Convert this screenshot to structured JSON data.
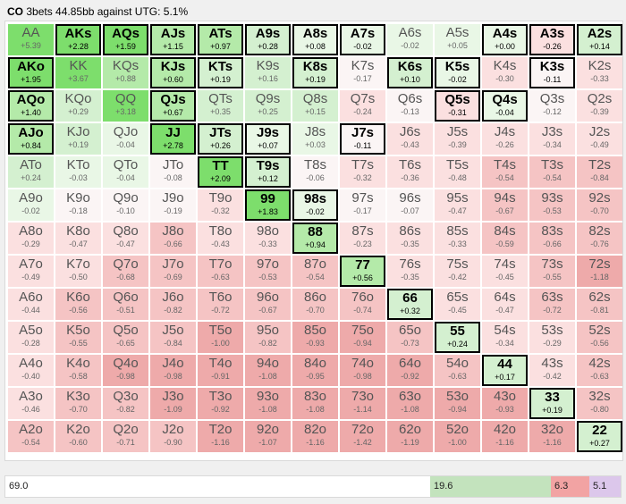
{
  "header": {
    "position": "CO",
    "description": "3bets 44.85bb against UTG: 5.1%"
  },
  "colors": {
    "strong_green": "#7dde6c",
    "light_green": "#d4f0d0",
    "pale_green": "#e9f7e6",
    "neutral": "#fbf5f5",
    "light_red": "#fbe0e0",
    "mid_red": "#f5c4c4",
    "strong_red": "#eeaaaa"
  },
  "grid": {
    "rows": [
      [
        {
          "hand": "AA",
          "ev": "+5.39",
          "sel": false
        },
        {
          "hand": "AKs",
          "ev": "+2.28",
          "sel": true
        },
        {
          "hand": "AQs",
          "ev": "+1.59",
          "sel": true
        },
        {
          "hand": "AJs",
          "ev": "+1.15",
          "sel": true
        },
        {
          "hand": "ATs",
          "ev": "+0.97",
          "sel": true
        },
        {
          "hand": "A9s",
          "ev": "+0.28",
          "sel": true
        },
        {
          "hand": "A8s",
          "ev": "+0.08",
          "sel": true
        },
        {
          "hand": "A7s",
          "ev": "-0.02",
          "sel": true
        },
        {
          "hand": "A6s",
          "ev": "-0.02",
          "sel": false
        },
        {
          "hand": "A5s",
          "ev": "+0.05",
          "sel": false
        },
        {
          "hand": "A4s",
          "ev": "+0.00",
          "sel": true
        },
        {
          "hand": "A3s",
          "ev": "-0.26",
          "sel": true
        },
        {
          "hand": "A2s",
          "ev": "+0.14",
          "sel": true
        }
      ],
      [
        {
          "hand": "AKo",
          "ev": "+1.95",
          "sel": true
        },
        {
          "hand": "KK",
          "ev": "+3.67",
          "sel": false
        },
        {
          "hand": "KQs",
          "ev": "+0.88",
          "sel": false
        },
        {
          "hand": "KJs",
          "ev": "+0.60",
          "sel": true
        },
        {
          "hand": "KTs",
          "ev": "+0.19",
          "sel": true
        },
        {
          "hand": "K9s",
          "ev": "+0.16",
          "sel": false
        },
        {
          "hand": "K8s",
          "ev": "+0.19",
          "sel": true
        },
        {
          "hand": "K7s",
          "ev": "-0.17",
          "sel": false
        },
        {
          "hand": "K6s",
          "ev": "+0.10",
          "sel": true
        },
        {
          "hand": "K5s",
          "ev": "-0.02",
          "sel": true
        },
        {
          "hand": "K4s",
          "ev": "-0.30",
          "sel": false
        },
        {
          "hand": "K3s",
          "ev": "-0.11",
          "sel": true
        },
        {
          "hand": "K2s",
          "ev": "-0.33",
          "sel": false
        }
      ],
      [
        {
          "hand": "AQo",
          "ev": "+1.40",
          "sel": true
        },
        {
          "hand": "KQo",
          "ev": "+0.29",
          "sel": false
        },
        {
          "hand": "QQ",
          "ev": "+3.18",
          "sel": false
        },
        {
          "hand": "QJs",
          "ev": "+0.67",
          "sel": true
        },
        {
          "hand": "QTs",
          "ev": "+0.35",
          "sel": false
        },
        {
          "hand": "Q9s",
          "ev": "+0.25",
          "sel": false
        },
        {
          "hand": "Q8s",
          "ev": "+0.15",
          "sel": false
        },
        {
          "hand": "Q7s",
          "ev": "-0.24",
          "sel": false
        },
        {
          "hand": "Q6s",
          "ev": "-0.13",
          "sel": false
        },
        {
          "hand": "Q5s",
          "ev": "-0.31",
          "sel": true
        },
        {
          "hand": "Q4s",
          "ev": "-0.04",
          "sel": true
        },
        {
          "hand": "Q3s",
          "ev": "-0.12",
          "sel": false
        },
        {
          "hand": "Q2s",
          "ev": "-0.39",
          "sel": false
        }
      ],
      [
        {
          "hand": "AJo",
          "ev": "+0.84",
          "sel": true
        },
        {
          "hand": "KJo",
          "ev": "+0.19",
          "sel": false
        },
        {
          "hand": "QJo",
          "ev": "-0.04",
          "sel": false
        },
        {
          "hand": "JJ",
          "ev": "+2.78",
          "sel": true
        },
        {
          "hand": "JTs",
          "ev": "+0.26",
          "sel": true
        },
        {
          "hand": "J9s",
          "ev": "+0.07",
          "sel": true
        },
        {
          "hand": "J8s",
          "ev": "+0.03",
          "sel": false
        },
        {
          "hand": "J7s",
          "ev": "-0.11",
          "sel": true
        },
        {
          "hand": "J6s",
          "ev": "-0.43",
          "sel": false
        },
        {
          "hand": "J5s",
          "ev": "-0.39",
          "sel": false
        },
        {
          "hand": "J4s",
          "ev": "-0.26",
          "sel": false
        },
        {
          "hand": "J3s",
          "ev": "-0.34",
          "sel": false
        },
        {
          "hand": "J2s",
          "ev": "-0.49",
          "sel": false
        }
      ],
      [
        {
          "hand": "ATo",
          "ev": "+0.24",
          "sel": false
        },
        {
          "hand": "KTo",
          "ev": "-0.03",
          "sel": false
        },
        {
          "hand": "QTo",
          "ev": "-0.04",
          "sel": false
        },
        {
          "hand": "JTo",
          "ev": "-0.08",
          "sel": false
        },
        {
          "hand": "TT",
          "ev": "+2.09",
          "sel": true
        },
        {
          "hand": "T9s",
          "ev": "+0.12",
          "sel": true
        },
        {
          "hand": "T8s",
          "ev": "-0.06",
          "sel": false
        },
        {
          "hand": "T7s",
          "ev": "-0.32",
          "sel": false
        },
        {
          "hand": "T6s",
          "ev": "-0.36",
          "sel": false
        },
        {
          "hand": "T5s",
          "ev": "-0.48",
          "sel": false
        },
        {
          "hand": "T4s",
          "ev": "-0.54",
          "sel": false
        },
        {
          "hand": "T3s",
          "ev": "-0.54",
          "sel": false
        },
        {
          "hand": "T2s",
          "ev": "-0.84",
          "sel": false
        }
      ],
      [
        {
          "hand": "A9o",
          "ev": "-0.02",
          "sel": false
        },
        {
          "hand": "K9o",
          "ev": "-0.18",
          "sel": false
        },
        {
          "hand": "Q9o",
          "ev": "-0.10",
          "sel": false
        },
        {
          "hand": "J9o",
          "ev": "-0.19",
          "sel": false
        },
        {
          "hand": "T9o",
          "ev": "-0.32",
          "sel": false
        },
        {
          "hand": "99",
          "ev": "+1.83",
          "sel": true
        },
        {
          "hand": "98s",
          "ev": "-0.02",
          "sel": true
        },
        {
          "hand": "97s",
          "ev": "-0.17",
          "sel": false
        },
        {
          "hand": "96s",
          "ev": "-0.07",
          "sel": false
        },
        {
          "hand": "95s",
          "ev": "-0.47",
          "sel": false
        },
        {
          "hand": "94s",
          "ev": "-0.67",
          "sel": false
        },
        {
          "hand": "93s",
          "ev": "-0.53",
          "sel": false
        },
        {
          "hand": "92s",
          "ev": "-0.70",
          "sel": false
        }
      ],
      [
        {
          "hand": "A8o",
          "ev": "-0.29",
          "sel": false
        },
        {
          "hand": "K8o",
          "ev": "-0.47",
          "sel": false
        },
        {
          "hand": "Q8o",
          "ev": "-0.47",
          "sel": false
        },
        {
          "hand": "J8o",
          "ev": "-0.66",
          "sel": false
        },
        {
          "hand": "T8o",
          "ev": "-0.43",
          "sel": false
        },
        {
          "hand": "98o",
          "ev": "-0.33",
          "sel": false
        },
        {
          "hand": "88",
          "ev": "+0.94",
          "sel": true
        },
        {
          "hand": "87s",
          "ev": "-0.23",
          "sel": false
        },
        {
          "hand": "86s",
          "ev": "-0.35",
          "sel": false
        },
        {
          "hand": "85s",
          "ev": "-0.33",
          "sel": false
        },
        {
          "hand": "84s",
          "ev": "-0.59",
          "sel": false
        },
        {
          "hand": "83s",
          "ev": "-0.66",
          "sel": false
        },
        {
          "hand": "82s",
          "ev": "-0.76",
          "sel": false
        }
      ],
      [
        {
          "hand": "A7o",
          "ev": "-0.49",
          "sel": false
        },
        {
          "hand": "K7o",
          "ev": "-0.50",
          "sel": false
        },
        {
          "hand": "Q7o",
          "ev": "-0.68",
          "sel": false
        },
        {
          "hand": "J7o",
          "ev": "-0.69",
          "sel": false
        },
        {
          "hand": "T7o",
          "ev": "-0.63",
          "sel": false
        },
        {
          "hand": "97o",
          "ev": "-0.53",
          "sel": false
        },
        {
          "hand": "87o",
          "ev": "-0.54",
          "sel": false
        },
        {
          "hand": "77",
          "ev": "+0.56",
          "sel": true
        },
        {
          "hand": "76s",
          "ev": "-0.35",
          "sel": false
        },
        {
          "hand": "75s",
          "ev": "-0.42",
          "sel": false
        },
        {
          "hand": "74s",
          "ev": "-0.45",
          "sel": false
        },
        {
          "hand": "73s",
          "ev": "-0.55",
          "sel": false
        },
        {
          "hand": "72s",
          "ev": "-1.18",
          "sel": false
        }
      ],
      [
        {
          "hand": "A6o",
          "ev": "-0.44",
          "sel": false
        },
        {
          "hand": "K6o",
          "ev": "-0.56",
          "sel": false
        },
        {
          "hand": "Q6o",
          "ev": "-0.51",
          "sel": false
        },
        {
          "hand": "J6o",
          "ev": "-0.82",
          "sel": false
        },
        {
          "hand": "T6o",
          "ev": "-0.72",
          "sel": false
        },
        {
          "hand": "96o",
          "ev": "-0.67",
          "sel": false
        },
        {
          "hand": "86o",
          "ev": "-0.70",
          "sel": false
        },
        {
          "hand": "76o",
          "ev": "-0.74",
          "sel": false
        },
        {
          "hand": "66",
          "ev": "+0.32",
          "sel": true
        },
        {
          "hand": "65s",
          "ev": "-0.45",
          "sel": false
        },
        {
          "hand": "64s",
          "ev": "-0.47",
          "sel": false
        },
        {
          "hand": "63s",
          "ev": "-0.72",
          "sel": false
        },
        {
          "hand": "62s",
          "ev": "-0.81",
          "sel": false
        }
      ],
      [
        {
          "hand": "A5o",
          "ev": "-0.28",
          "sel": false
        },
        {
          "hand": "K5o",
          "ev": "-0.55",
          "sel": false
        },
        {
          "hand": "Q5o",
          "ev": "-0.65",
          "sel": false
        },
        {
          "hand": "J5o",
          "ev": "-0.84",
          "sel": false
        },
        {
          "hand": "T5o",
          "ev": "-1.00",
          "sel": false
        },
        {
          "hand": "95o",
          "ev": "-0.82",
          "sel": false
        },
        {
          "hand": "85o",
          "ev": "-0.93",
          "sel": false
        },
        {
          "hand": "75o",
          "ev": "-0.94",
          "sel": false
        },
        {
          "hand": "65o",
          "ev": "-0.73",
          "sel": false
        },
        {
          "hand": "55",
          "ev": "+0.24",
          "sel": true
        },
        {
          "hand": "54s",
          "ev": "-0.34",
          "sel": false
        },
        {
          "hand": "53s",
          "ev": "-0.29",
          "sel": false
        },
        {
          "hand": "52s",
          "ev": "-0.56",
          "sel": false
        }
      ],
      [
        {
          "hand": "A4o",
          "ev": "-0.40",
          "sel": false
        },
        {
          "hand": "K4o",
          "ev": "-0.58",
          "sel": false
        },
        {
          "hand": "Q4o",
          "ev": "-0.98",
          "sel": false
        },
        {
          "hand": "J4o",
          "ev": "-0.98",
          "sel": false
        },
        {
          "hand": "T4o",
          "ev": "-0.91",
          "sel": false
        },
        {
          "hand": "94o",
          "ev": "-1.08",
          "sel": false
        },
        {
          "hand": "84o",
          "ev": "-0.95",
          "sel": false
        },
        {
          "hand": "74o",
          "ev": "-0.98",
          "sel": false
        },
        {
          "hand": "64o",
          "ev": "-0.92",
          "sel": false
        },
        {
          "hand": "54o",
          "ev": "-0.63",
          "sel": false
        },
        {
          "hand": "44",
          "ev": "+0.17",
          "sel": true
        },
        {
          "hand": "43s",
          "ev": "-0.42",
          "sel": false
        },
        {
          "hand": "42s",
          "ev": "-0.63",
          "sel": false
        }
      ],
      [
        {
          "hand": "A3o",
          "ev": "-0.46",
          "sel": false
        },
        {
          "hand": "K3o",
          "ev": "-0.70",
          "sel": false
        },
        {
          "hand": "Q3o",
          "ev": "-0.82",
          "sel": false
        },
        {
          "hand": "J3o",
          "ev": "-1.09",
          "sel": false
        },
        {
          "hand": "T3o",
          "ev": "-0.92",
          "sel": false
        },
        {
          "hand": "93o",
          "ev": "-1.08",
          "sel": false
        },
        {
          "hand": "83o",
          "ev": "-1.08",
          "sel": false
        },
        {
          "hand": "73o",
          "ev": "-1.14",
          "sel": false
        },
        {
          "hand": "63o",
          "ev": "-1.08",
          "sel": false
        },
        {
          "hand": "53o",
          "ev": "-0.94",
          "sel": false
        },
        {
          "hand": "43o",
          "ev": "-0.93",
          "sel": false
        },
        {
          "hand": "33",
          "ev": "+0.19",
          "sel": true
        },
        {
          "hand": "32s",
          "ev": "-0.80",
          "sel": false
        }
      ],
      [
        {
          "hand": "A2o",
          "ev": "-0.54",
          "sel": false
        },
        {
          "hand": "K2o",
          "ev": "-0.60",
          "sel": false
        },
        {
          "hand": "Q2o",
          "ev": "-0.71",
          "sel": false
        },
        {
          "hand": "J2o",
          "ev": "-0.90",
          "sel": false
        },
        {
          "hand": "T2o",
          "ev": "-1.16",
          "sel": false
        },
        {
          "hand": "92o",
          "ev": "-1.07",
          "sel": false
        },
        {
          "hand": "82o",
          "ev": "-1.16",
          "sel": false
        },
        {
          "hand": "72o",
          "ev": "-1.42",
          "sel": false
        },
        {
          "hand": "62o",
          "ev": "-1.19",
          "sel": false
        },
        {
          "hand": "52o",
          "ev": "-1.00",
          "sel": false
        },
        {
          "hand": "42o",
          "ev": "-1.16",
          "sel": false
        },
        {
          "hand": "32o",
          "ev": "-1.16",
          "sel": false
        },
        {
          "hand": "22",
          "ev": "+0.27",
          "sel": true
        }
      ]
    ]
  },
  "summary_bar": {
    "segments": [
      {
        "label": "69.0",
        "percent": 69.0,
        "color": "#ffffff"
      },
      {
        "label": "19.6",
        "percent": 19.6,
        "color": "#c3e3bd"
      },
      {
        "label": "6.3",
        "percent": 6.3,
        "color": "#f2a3a3"
      },
      {
        "label": "5.1",
        "percent": 5.1,
        "color": "#dcc7eb"
      }
    ]
  }
}
